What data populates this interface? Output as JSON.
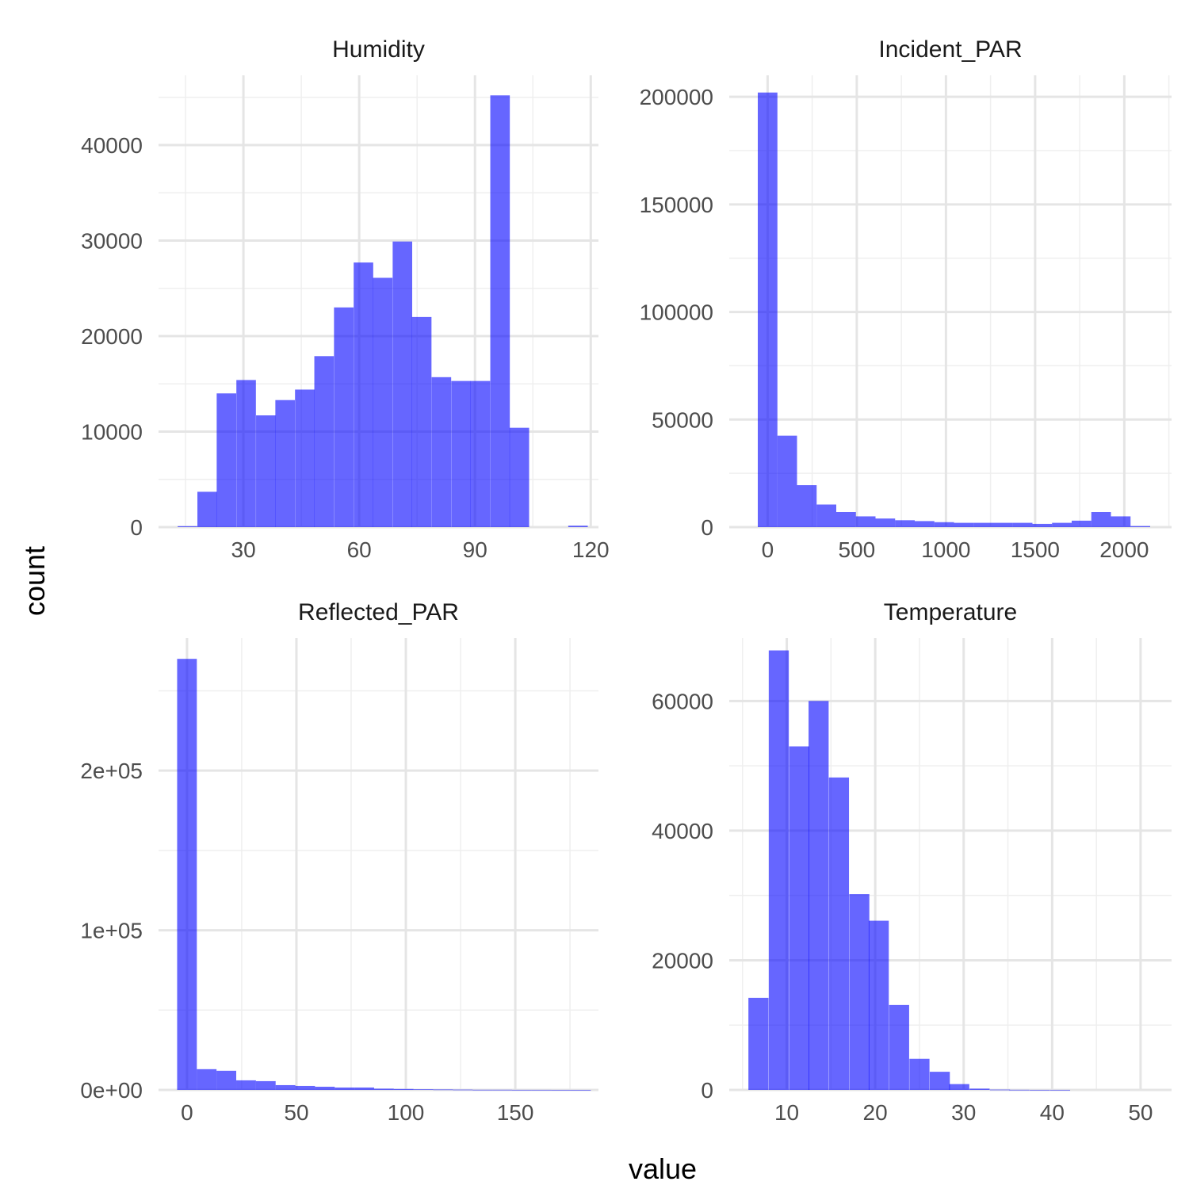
{
  "chart_data": {
    "type": "bar",
    "facet_layout": "2x2",
    "xlabel": "value",
    "ylabel": "count",
    "bar_color": "#0000ff",
    "bar_opacity": 0.6,
    "grid": true,
    "panels": [
      {
        "title": "Humidity",
        "xlim": [
          8,
          122
        ],
        "ylim": [
          0,
          47300
        ],
        "xticks": [
          30,
          60,
          90,
          120
        ],
        "xtick_labels": [
          "30",
          "60",
          "90",
          "120"
        ],
        "yticks": [
          0,
          10000,
          20000,
          30000,
          40000
        ],
        "ytick_labels": [
          "0",
          "10000",
          "20000",
          "30000",
          "40000"
        ],
        "bin_width": 5.06,
        "bin_centers": [
          15.5,
          20.6,
          25.6,
          30.7,
          35.8,
          40.8,
          45.9,
          50.9,
          56.0,
          61.1,
          66.1,
          71.2,
          76.2,
          81.3,
          86.4,
          91.4,
          96.5,
          101.5,
          106.6,
          111.7,
          116.7
        ],
        "counts": [
          100,
          3700,
          14000,
          15400,
          11700,
          13300,
          14400,
          17900,
          23000,
          27700,
          26100,
          29900,
          22000,
          15700,
          15300,
          15300,
          45200,
          10400,
          0,
          0,
          150
        ]
      },
      {
        "title": "Incident_PAR",
        "xlim": [
          -215,
          2265
        ],
        "ylim": [
          0,
          210000
        ],
        "xticks": [
          0,
          500,
          1000,
          1500,
          2000
        ],
        "xtick_labels": [
          "0",
          "500",
          "1000",
          "1500",
          "2000"
        ],
        "yticks": [
          0,
          50000,
          100000,
          150000,
          200000
        ],
        "ytick_labels": [
          "0",
          "50000",
          "100000",
          "150000",
          "200000"
        ],
        "bin_width": 110,
        "bin_centers": [
          0,
          110,
          220,
          330,
          440,
          550,
          660,
          770,
          880,
          990,
          1100,
          1210,
          1320,
          1430,
          1540,
          1650,
          1760,
          1870,
          1980,
          2090
        ],
        "counts": [
          202000,
          42500,
          19500,
          10500,
          7000,
          5000,
          4000,
          3200,
          2800,
          2300,
          2000,
          2000,
          2000,
          2000,
          1500,
          2000,
          3000,
          7000,
          5000,
          500
        ]
      },
      {
        "title": "Reflected_PAR",
        "xlim": [
          -13,
          188
        ],
        "ylim": [
          0,
          283000
        ],
        "xticks": [
          0,
          50,
          100,
          150
        ],
        "xtick_labels": [
          "0",
          "50",
          "100",
          "150"
        ],
        "yticks": [
          0,
          100000,
          200000
        ],
        "ytick_labels": [
          "0e+00",
          "1e+05",
          "2e+05"
        ],
        "bin_width": 9,
        "bin_centers": [
          0,
          9,
          18,
          27,
          36,
          45,
          54,
          63,
          72,
          81,
          90,
          99,
          108,
          117,
          126,
          135,
          144,
          153,
          162,
          171,
          180
        ],
        "counts": [
          270000,
          13000,
          12000,
          6000,
          5500,
          3000,
          2500,
          2000,
          1500,
          1500,
          800,
          600,
          400,
          300,
          200,
          100,
          100,
          50,
          50,
          30,
          20
        ]
      },
      {
        "title": "Temperature",
        "xlim": [
          3.5,
          53.5
        ],
        "ylim": [
          0,
          69700
        ],
        "xticks": [
          10,
          20,
          30,
          40,
          50
        ],
        "xtick_labels": [
          "10",
          "20",
          "30",
          "40",
          "50"
        ],
        "yticks": [
          0,
          20000,
          40000,
          60000
        ],
        "ytick_labels": [
          "0",
          "20000",
          "40000",
          "60000"
        ],
        "bin_width": 2.27,
        "bin_centers": [
          6.8,
          9.1,
          11.4,
          13.6,
          15.9,
          18.2,
          20.4,
          22.7,
          25.0,
          27.3,
          29.5,
          31.8,
          34.1,
          36.3,
          38.6,
          40.9,
          43.2,
          45.4,
          47.7,
          50.0
        ],
        "counts": [
          14200,
          67800,
          53000,
          60000,
          48200,
          30200,
          26100,
          13100,
          4800,
          2800,
          900,
          200,
          50,
          20,
          10,
          10,
          0,
          0,
          0,
          0
        ]
      }
    ]
  }
}
